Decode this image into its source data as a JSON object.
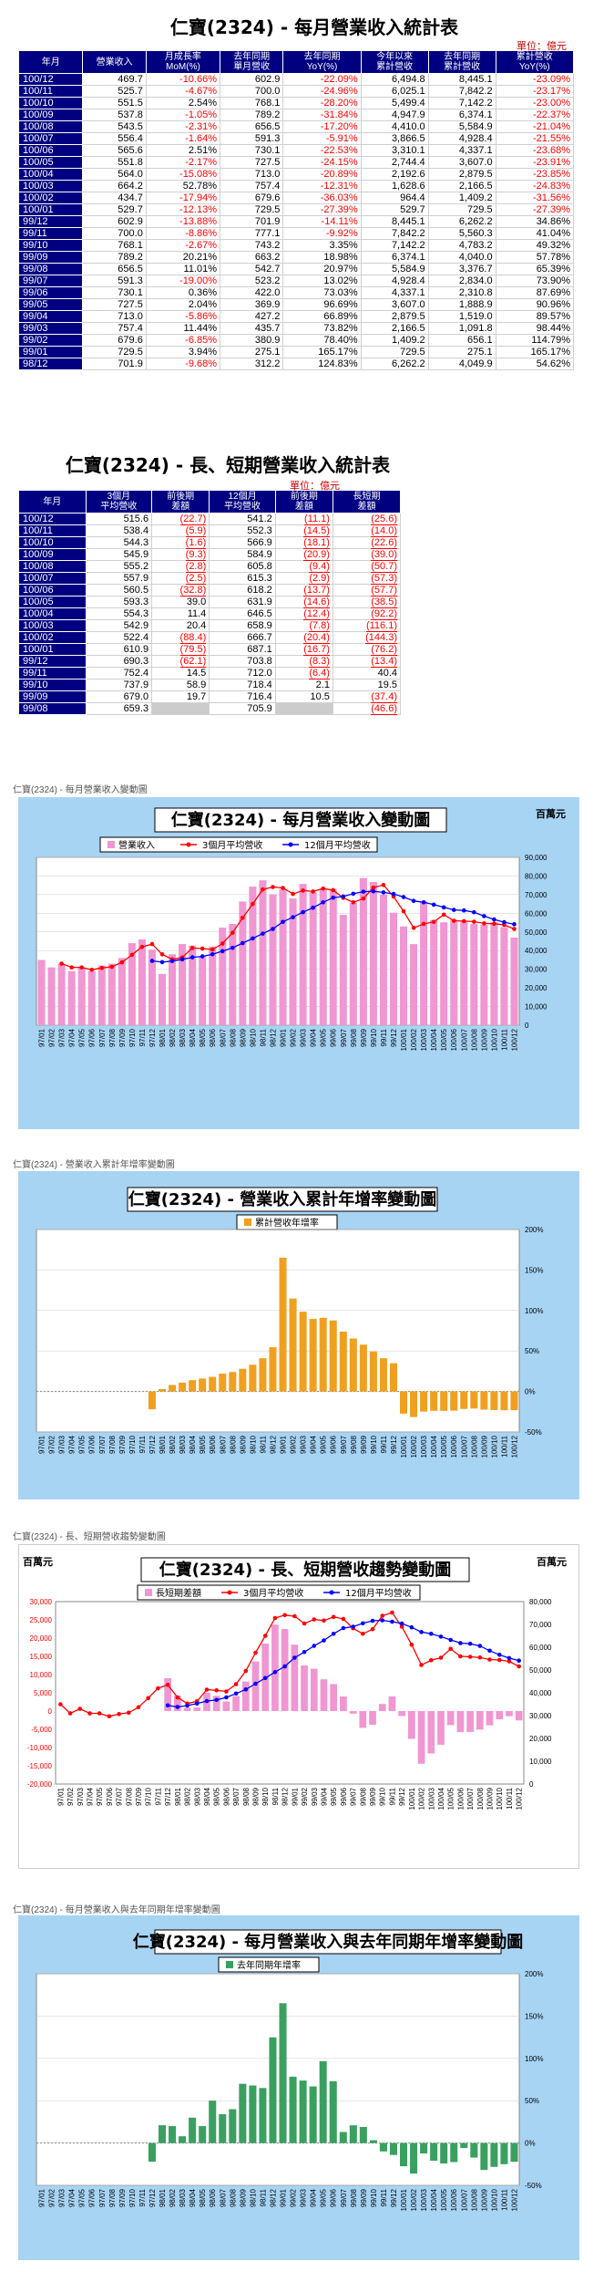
{
  "monthly_table": {
    "title": "仁寶(2324) - 每月營業收入統計表",
    "unit": "單位：億元",
    "headers": [
      "年月",
      "營業收入",
      "月成長率\nMoM(%)",
      "去年同期\n單月營收",
      "去年同期\nYoY(%)",
      "今年以來\n累計營收",
      "去年同期\n累計營收",
      "累計營收\nYoY(%)"
    ],
    "rows": [
      [
        "100/12",
        "469.7",
        "-10.66%",
        "602.9",
        "-22.09%",
        "6,494.8",
        "8,445.1",
        "-23.09%"
      ],
      [
        "100/11",
        "525.7",
        "-4.67%",
        "700.0",
        "-24.96%",
        "6,025.1",
        "7,842.2",
        "-23.17%"
      ],
      [
        "100/10",
        "551.5",
        "2.54%",
        "768.1",
        "-28.20%",
        "5,499.4",
        "7,142.2",
        "-23.00%"
      ],
      [
        "100/09",
        "537.8",
        "-1.05%",
        "789.2",
        "-31.84%",
        "4,947.9",
        "6,374.1",
        "-22.37%"
      ],
      [
        "100/08",
        "543.5",
        "-2.31%",
        "656.5",
        "-17.20%",
        "4,410.0",
        "5,584.9",
        "-21.04%"
      ],
      [
        "100/07",
        "556.4",
        "-1.64%",
        "591.3",
        "-5.91%",
        "3,866.5",
        "4,928.4",
        "-21.55%"
      ],
      [
        "100/06",
        "565.6",
        "2.51%",
        "730.1",
        "-22.53%",
        "3,310.1",
        "4,337.1",
        "-23.68%"
      ],
      [
        "100/05",
        "551.8",
        "-2.17%",
        "727.5",
        "-24.15%",
        "2,744.4",
        "3,607.0",
        "-23.91%"
      ],
      [
        "100/04",
        "564.0",
        "-15.08%",
        "713.0",
        "-20.89%",
        "2,192.6",
        "2,879.5",
        "-23.85%"
      ],
      [
        "100/03",
        "664.2",
        "52.78%",
        "757.4",
        "-12.31%",
        "1,628.6",
        "2,166.5",
        "-24.83%"
      ],
      [
        "100/02",
        "434.7",
        "-17.94%",
        "679.6",
        "-36.03%",
        "964.4",
        "1,409.2",
        "-31.56%"
      ],
      [
        "100/01",
        "529.7",
        "-12.13%",
        "729.5",
        "-27.39%",
        "529.7",
        "729.5",
        "-27.39%"
      ],
      [
        "99/12",
        "602.9",
        "-13.88%",
        "701.9",
        "-14.11%",
        "8,445.1",
        "6,262.2",
        "34.86%"
      ],
      [
        "99/11",
        "700.0",
        "-8.86%",
        "777.1",
        "-9.92%",
        "7,842.2",
        "5,560.3",
        "41.04%"
      ],
      [
        "99/10",
        "768.1",
        "-2.67%",
        "743.2",
        "3.35%",
        "7,142.2",
        "4,783.2",
        "49.32%"
      ],
      [
        "99/09",
        "789.2",
        "20.21%",
        "663.2",
        "18.98%",
        "6,374.1",
        "4,040.0",
        "57.78%"
      ],
      [
        "99/08",
        "656.5",
        "11.01%",
        "542.7",
        "20.97%",
        "5,584.9",
        "3,376.7",
        "65.39%"
      ],
      [
        "99/07",
        "591.3",
        "-19.00%",
        "523.2",
        "13.02%",
        "4,928.4",
        "2,834.0",
        "73.90%"
      ],
      [
        "99/06",
        "730.1",
        "0.36%",
        "422.0",
        "73.03%",
        "4,337.1",
        "2,310.8",
        "87.69%"
      ],
      [
        "99/05",
        "727.5",
        "2.04%",
        "369.9",
        "96.69%",
        "3,607.0",
        "1,888.9",
        "90.96%"
      ],
      [
        "99/04",
        "713.0",
        "-5.86%",
        "427.2",
        "66.89%",
        "2,879.5",
        "1,519.0",
        "89.57%"
      ],
      [
        "99/03",
        "757.4",
        "11.44%",
        "435.7",
        "73.82%",
        "2,166.5",
        "1,091.8",
        "98.44%"
      ],
      [
        "99/02",
        "679.6",
        "-6.85%",
        "380.9",
        "78.40%",
        "1,409.2",
        "656.1",
        "114.79%"
      ],
      [
        "99/01",
        "729.5",
        "3.94%",
        "275.1",
        "165.17%",
        "729.5",
        "275.1",
        "165.17%"
      ],
      [
        "98/12",
        "701.9",
        "-9.68%",
        "312.2",
        "124.83%",
        "6,262.2",
        "4,049.9",
        "54.62%"
      ]
    ]
  },
  "ls_table": {
    "title": "仁寶(2324) - 長、短期營業收入統計表",
    "unit": "單位：億元",
    "headers": [
      "年月",
      "3個月\n平均營收",
      "前後期\n差額",
      "12個月\n平均營收",
      "前後期\n差額",
      "長短期\n差額"
    ],
    "rows": [
      [
        "100/12",
        "515.6",
        "(22.7)",
        "541.2",
        "(11.1)",
        "(25.6)"
      ],
      [
        "100/11",
        "538.4",
        "(5.9)",
        "552.3",
        "(14.5)",
        "(14.0)"
      ],
      [
        "100/10",
        "544.3",
        "(1.6)",
        "566.9",
        "(18.1)",
        "(22.6)"
      ],
      [
        "100/09",
        "545.9",
        "(9.3)",
        "584.9",
        "(20.9)",
        "(39.0)"
      ],
      [
        "100/08",
        "555.2",
        "(2.8)",
        "605.8",
        "(9.4)",
        "(50.7)"
      ],
      [
        "100/07",
        "557.9",
        "(2.5)",
        "615.3",
        "(2.9)",
        "(57.3)"
      ],
      [
        "100/06",
        "560.5",
        "(32.8)",
        "618.2",
        "(13.7)",
        "(57.7)"
      ],
      [
        "100/05",
        "593.3",
        "39.0",
        "631.9",
        "(14.6)",
        "(38.5)"
      ],
      [
        "100/04",
        "554.3",
        "11.4",
        "646.5",
        "(12.4)",
        "(92.2)"
      ],
      [
        "100/03",
        "542.9",
        "20.4",
        "658.9",
        "(7.8)",
        "(116.1)"
      ],
      [
        "100/02",
        "522.4",
        "(88.4)",
        "666.7",
        "(20.4)",
        "(144.3)"
      ],
      [
        "100/01",
        "610.9",
        "(79.5)",
        "687.1",
        "(16.7)",
        "(76.2)"
      ],
      [
        "99/12",
        "690.3",
        "(62.1)",
        "703.8",
        "(8.3)",
        "(13.4)"
      ],
      [
        "99/11",
        "752.4",
        "14.5",
        "712.0",
        "(6.4)",
        "40.4"
      ],
      [
        "99/10",
        "737.9",
        "58.9",
        "718.4",
        "2.1",
        "19.5"
      ],
      [
        "99/09",
        "679.0",
        "19.7",
        "716.4",
        "10.5",
        "(37.4)"
      ],
      [
        "99/08",
        "659.3",
        "",
        "705.9",
        "",
        "(46.6)"
      ]
    ]
  },
  "section_labels": {
    "s1": "仁寶(2324) - 每月營業收入變動圖",
    "s2": "仁寶(2324) -  營業收入累計年增率變動圖",
    "s3": "仁寶(2324) -  長、短期營收趨勢變動圖",
    "s4": "仁寶(2324) -  每月營業收入與去年同期年增率變動圖"
  },
  "colors": {
    "header_bg": "#000080",
    "panel_bg": "#a8d4f4",
    "pink": "#f096d2",
    "red": "#ff0000",
    "blue": "#0000ff",
    "orange": "#f0a020",
    "green": "#3aa060"
  },
  "chart_data": [
    {
      "type": "bar",
      "title": "仁寶(2324) - 每月營業收入變動圖",
      "unit_label": "百萬元",
      "legend": [
        "營業收入",
        "3個月平均營收",
        "12個月平均營收"
      ],
      "ylim": [
        0,
        90000
      ],
      "yticks": [
        "0",
        "10,000",
        "20,000",
        "30,000",
        "40,000",
        "50,000",
        "60,000",
        "70,000",
        "80,000",
        "90,000"
      ],
      "x": [
        "97/01",
        "97/02",
        "97/03",
        "97/04",
        "97/05",
        "97/06",
        "97/07",
        "97/08",
        "97/09",
        "97/10",
        "97/11",
        "97/12",
        "98/01",
        "98/02",
        "98/03",
        "98/04",
        "98/05",
        "98/06",
        "98/07",
        "98/08",
        "98/09",
        "98/10",
        "98/11",
        "98/12",
        "99/01",
        "99/02",
        "99/03",
        "99/04",
        "99/05",
        "99/06",
        "99/07",
        "99/08",
        "99/09",
        "99/10",
        "99/11",
        "99/12",
        "100/01",
        "100/02",
        "100/03",
        "100/04",
        "100/05",
        "100/06",
        "100/07",
        "100/08",
        "100/09",
        "100/10",
        "100/11",
        "100/12"
      ],
      "revenue": [
        35000,
        31000,
        33000,
        29000,
        31000,
        29000,
        32000,
        33000,
        36000,
        44000,
        46000,
        40500,
        27500,
        38000,
        43500,
        42700,
        37000,
        42200,
        52300,
        54300,
        66300,
        74300,
        77700,
        70200,
        72950,
        67960,
        75740,
        71300,
        72750,
        73010,
        59130,
        65650,
        78920,
        76810,
        70000,
        60290,
        52970,
        43470,
        66420,
        56400,
        55180,
        56560,
        55640,
        54350,
        53780,
        55150,
        52570,
        46970
      ],
      "ma3": [
        null,
        null,
        33000,
        31000,
        31000,
        29700,
        30700,
        31300,
        33700,
        37700,
        42000,
        43500,
        38000,
        35300,
        36300,
        41400,
        41100,
        40600,
        43800,
        49600,
        57600,
        65000,
        72800,
        74100,
        73600,
        70400,
        72200,
        71700,
        73300,
        72400,
        68300,
        65900,
        67900,
        73800,
        75200,
        69000,
        61100,
        52200,
        54300,
        55400,
        59300,
        56000,
        55800,
        55500,
        54600,
        54400,
        53800,
        51600
      ],
      "ma12": [
        null,
        null,
        null,
        null,
        null,
        null,
        null,
        null,
        null,
        null,
        null,
        34500,
        33800,
        34400,
        35300,
        36400,
        36900,
        38000,
        39700,
        41500,
        44000,
        46500,
        49100,
        51600,
        55400,
        57900,
        60600,
        63000,
        65900,
        68400,
        69000,
        70500,
        71600,
        71800,
        71200,
        70390,
        68710,
        66670,
        65890,
        64650,
        63190,
        61820,
        61530,
        60580,
        58490,
        56690,
        55230,
        54120
      ]
    },
    {
      "type": "bar",
      "title": "仁寶(2324) -  營業收入累計年增率變動圖",
      "legend": [
        "累計營收年增率"
      ],
      "ylim": [
        -50,
        200
      ],
      "yticks": [
        "-50%",
        "0%",
        "50%",
        "100%",
        "150%",
        "200%"
      ],
      "x": [
        "97/01",
        "97/02",
        "97/03",
        "97/04",
        "97/05",
        "97/06",
        "97/07",
        "97/08",
        "97/09",
        "97/10",
        "97/11",
        "97/12",
        "98/01",
        "98/02",
        "98/03",
        "98/04",
        "98/05",
        "98/06",
        "98/07",
        "98/08",
        "98/09",
        "98/10",
        "98/11",
        "98/12",
        "99/01",
        "99/02",
        "99/03",
        "99/04",
        "99/05",
        "99/06",
        "99/07",
        "99/08",
        "99/09",
        "99/10",
        "99/11",
        "99/12",
        "100/01",
        "100/02",
        "100/03",
        "100/04",
        "100/05",
        "100/06",
        "100/07",
        "100/08",
        "100/09",
        "100/10",
        "100/11",
        "100/12"
      ],
      "values": [
        0,
        0,
        0,
        0,
        0,
        0,
        0,
        0,
        0,
        0,
        0,
        -22,
        3,
        8,
        11,
        14,
        16,
        18,
        22,
        24,
        28,
        33,
        41,
        54.62,
        165.17,
        114.79,
        98.44,
        89.57,
        90.96,
        87.69,
        73.9,
        65.39,
        57.78,
        49.32,
        41.04,
        34.86,
        -27.39,
        -31.56,
        -24.83,
        -23.85,
        -23.91,
        -23.68,
        -21.55,
        -21.04,
        -22.37,
        -23.0,
        -23.17,
        -23.09
      ]
    },
    {
      "type": "bar",
      "title": "仁寶(2324) -  長、短期營收趨勢變動圖",
      "unit_label": "百萬元",
      "legend": [
        "長短期差額",
        "3個月平均營收",
        "12個月平均營收"
      ],
      "y_left": [
        -20000,
        30000
      ],
      "y_left_ticks": [
        "-20,000",
        "-15,000",
        "-10,000",
        "-5,000",
        "0",
        "5,000",
        "10,000",
        "15,000",
        "20,000",
        "25,000",
        "30,000"
      ],
      "y_right": [
        0,
        80000
      ],
      "y_right_ticks": [
        "0",
        "10,000",
        "20,000",
        "30,000",
        "40,000",
        "50,000",
        "60,000",
        "70,000",
        "80,000"
      ],
      "x": [
        "97/01",
        "97/02",
        "97/03",
        "97/04",
        "97/05",
        "97/06",
        "97/07",
        "97/08",
        "97/09",
        "97/10",
        "97/11",
        "97/12",
        "98/01",
        "98/02",
        "98/03",
        "98/04",
        "98/05",
        "98/06",
        "98/07",
        "98/08",
        "98/09",
        "98/10",
        "98/11",
        "98/12",
        "99/01",
        "99/02",
        "99/03",
        "99/04",
        "99/05",
        "99/06",
        "99/07",
        "99/08",
        "99/09",
        "99/10",
        "99/11",
        "99/12",
        "100/01",
        "100/02",
        "100/03",
        "100/04",
        "100/05",
        "100/06",
        "100/07",
        "100/08",
        "100/09",
        "100/10",
        "100/11",
        "100/12"
      ],
      "diff": [
        null,
        null,
        null,
        null,
        null,
        null,
        null,
        null,
        null,
        null,
        null,
        9000,
        4200,
        900,
        1000,
        5000,
        4200,
        2600,
        4100,
        8100,
        13600,
        18500,
        23700,
        22500,
        18200,
        12500,
        11600,
        8700,
        7400,
        4000,
        -700,
        -4600,
        -3740,
        1950,
        4040,
        -1340,
        -7620,
        -14430,
        -11610,
        -9220,
        -3850,
        -5770,
        -5730,
        -5070,
        -3900,
        -2260,
        -1400,
        -2560
      ],
      "ma3": [
        35000,
        31000,
        33000,
        31000,
        31000,
        29700,
        30700,
        31300,
        33700,
        37700,
        42000,
        43500,
        38000,
        35300,
        36300,
        41400,
        41100,
        40600,
        43800,
        49600,
        57600,
        65000,
        72800,
        74100,
        73600,
        70400,
        72200,
        71700,
        73300,
        72400,
        68300,
        65900,
        67900,
        73800,
        75200,
        69000,
        61100,
        52200,
        54300,
        55400,
        59300,
        56000,
        55800,
        55500,
        54600,
        54400,
        53800,
        51600
      ],
      "ma12": [
        null,
        null,
        null,
        null,
        null,
        null,
        null,
        null,
        null,
        null,
        null,
        34500,
        33800,
        34400,
        35300,
        36400,
        36900,
        38000,
        39700,
        41500,
        44000,
        46500,
        49100,
        51600,
        55400,
        57900,
        60600,
        63000,
        65900,
        68400,
        69000,
        70500,
        71600,
        71800,
        71200,
        70390,
        68710,
        66670,
        65890,
        64650,
        63190,
        61820,
        61530,
        60580,
        58490,
        56690,
        55230,
        54120
      ]
    },
    {
      "type": "bar",
      "title": "仁寶(2324) -  每月營業收入與去年同期年增率變動圖",
      "legend": [
        "去年同期年增率"
      ],
      "ylim": [
        -50,
        200
      ],
      "yticks": [
        "-50%",
        "0%",
        "50%",
        "100%",
        "150%",
        "200%"
      ],
      "x": [
        "97/01",
        "97/02",
        "97/03",
        "97/04",
        "97/05",
        "97/06",
        "97/07",
        "97/08",
        "97/09",
        "97/10",
        "97/11",
        "97/12",
        "98/01",
        "98/02",
        "98/03",
        "98/04",
        "98/05",
        "98/06",
        "98/07",
        "98/08",
        "98/09",
        "98/10",
        "98/11",
        "98/12",
        "99/01",
        "99/02",
        "99/03",
        "99/04",
        "99/05",
        "99/06",
        "99/07",
        "99/08",
        "99/09",
        "99/10",
        "99/11",
        "99/12",
        "100/01",
        "100/02",
        "100/03",
        "100/04",
        "100/05",
        "100/06",
        "100/07",
        "100/08",
        "100/09",
        "100/10",
        "100/11",
        "100/12"
      ],
      "values": [
        0,
        0,
        0,
        0,
        0,
        0,
        0,
        0,
        0,
        0,
        0,
        -22,
        21,
        20,
        8,
        30,
        20,
        50,
        34,
        40,
        70,
        68,
        65,
        124.83,
        165.17,
        78.4,
        73.82,
        66.89,
        96.69,
        73.03,
        13.02,
        20.97,
        18.98,
        3.35,
        -9.92,
        -14.11,
        -27.39,
        -36.03,
        -12.31,
        -20.89,
        -24.15,
        -22.53,
        -5.91,
        -17.2,
        -31.84,
        -28.2,
        -24.96,
        -22.09
      ]
    }
  ]
}
